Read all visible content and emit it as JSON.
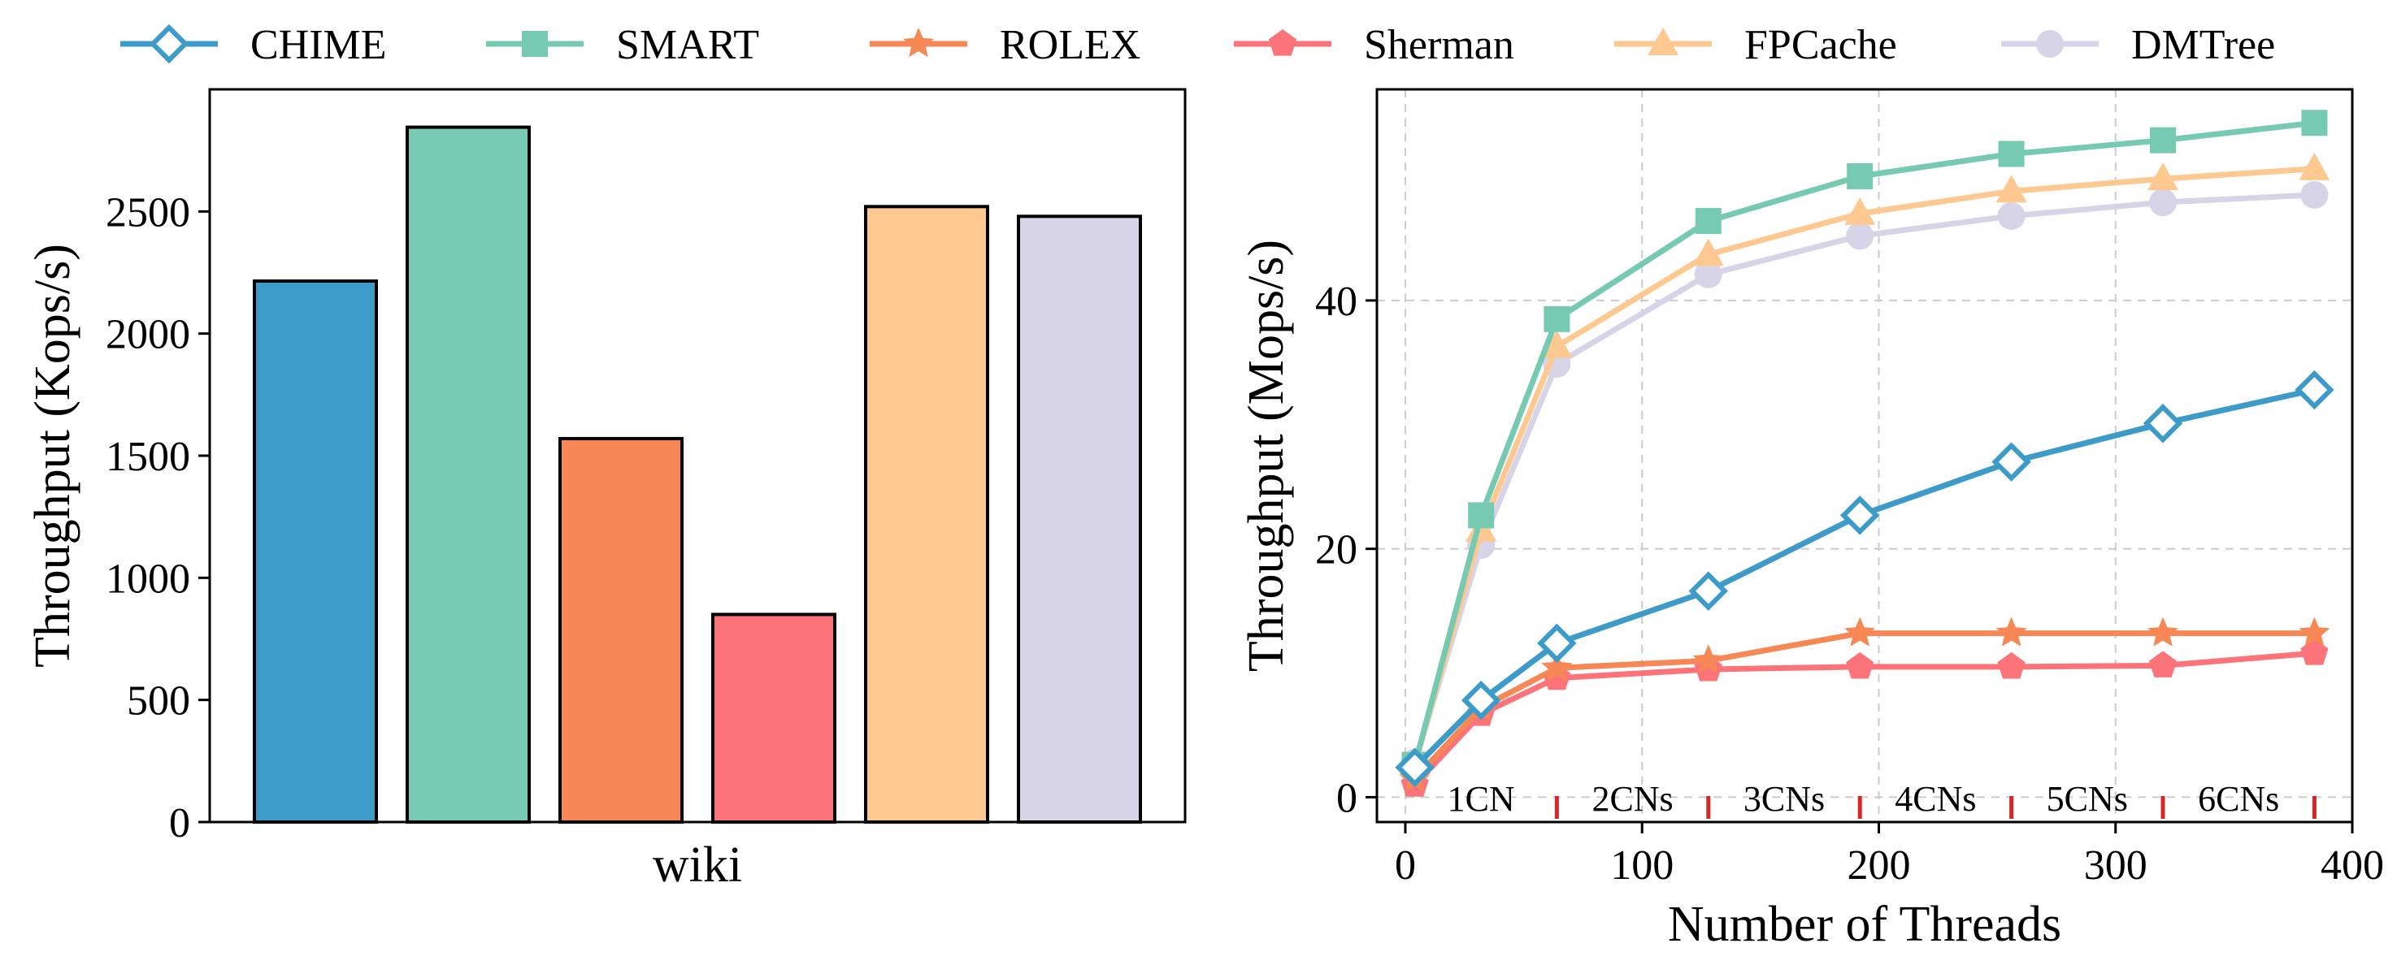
{
  "legend": {
    "placement": "top",
    "entries": [
      {
        "name": "CHIME",
        "color": "#3d9bc9",
        "marker": "diamond-open"
      },
      {
        "name": "SMART",
        "color": "#76cab1",
        "marker": "square"
      },
      {
        "name": "ROLEX",
        "color": "#f88756",
        "marker": "star"
      },
      {
        "name": "Sherman",
        "color": "#fc737a",
        "marker": "pentagon"
      },
      {
        "name": "FPCache",
        "color": "#fec991",
        "marker": "triangle"
      },
      {
        "name": "DMTree",
        "color": "#d7d4e8",
        "marker": "circle"
      }
    ]
  },
  "chart_data": [
    {
      "type": "bar",
      "categories": [
        "wiki"
      ],
      "series": [
        {
          "name": "CHIME",
          "values": [
            2215
          ]
        },
        {
          "name": "SMART",
          "values": [
            2845
          ]
        },
        {
          "name": "ROLEX",
          "values": [
            1570
          ]
        },
        {
          "name": "Sherman",
          "values": [
            850
          ]
        },
        {
          "name": "FPCache",
          "values": [
            2520
          ]
        },
        {
          "name": "DMTree",
          "values": [
            2480
          ]
        }
      ],
      "xlabel": "wiki",
      "ylabel": "Throughput (Kops/s)",
      "ylim": [
        0,
        3000
      ],
      "yticks": [
        "0",
        "500",
        "1000",
        "1500",
        "2000",
        "2500"
      ],
      "grid": false
    },
    {
      "type": "line",
      "x": [
        4,
        32,
        64,
        128,
        192,
        256,
        320,
        384
      ],
      "series": [
        {
          "name": "CHIME",
          "values": [
            2.4,
            7.8,
            12.4,
            16.6,
            22.7,
            27.0,
            30.1,
            32.8
          ]
        },
        {
          "name": "SMART",
          "values": [
            2.6,
            22.7,
            38.5,
            46.4,
            50.0,
            51.8,
            52.9,
            54.3
          ]
        },
        {
          "name": "ROLEX",
          "values": [
            1.5,
            7.2,
            10.4,
            11.0,
            13.2,
            13.2,
            13.2,
            13.2
          ]
        },
        {
          "name": "Sherman",
          "values": [
            1.0,
            6.7,
            9.6,
            10.3,
            10.5,
            10.5,
            10.6,
            11.6
          ]
        },
        {
          "name": "FPCache",
          "values": [
            2.6,
            21.5,
            36.3,
            43.7,
            47.0,
            48.8,
            49.8,
            50.6
          ]
        },
        {
          "name": "DMTree",
          "values": [
            2.8,
            20.3,
            34.9,
            42.1,
            45.2,
            46.8,
            47.9,
            48.5
          ]
        }
      ],
      "xlabel": "Number of Threads",
      "ylabel": "Throughput (Mops/s)",
      "xlim": [
        -12,
        400
      ],
      "ylim": [
        -2,
        57
      ],
      "xticks": [
        "0",
        "100",
        "200",
        "300",
        "400"
      ],
      "yticks": [
        "0",
        "20",
        "40"
      ],
      "grid": true,
      "annotations": [
        "1CN",
        "2CNs",
        "3CNs",
        "4CNs",
        "5CNs",
        "6CNs"
      ],
      "separator_color": "#d62728"
    }
  ]
}
